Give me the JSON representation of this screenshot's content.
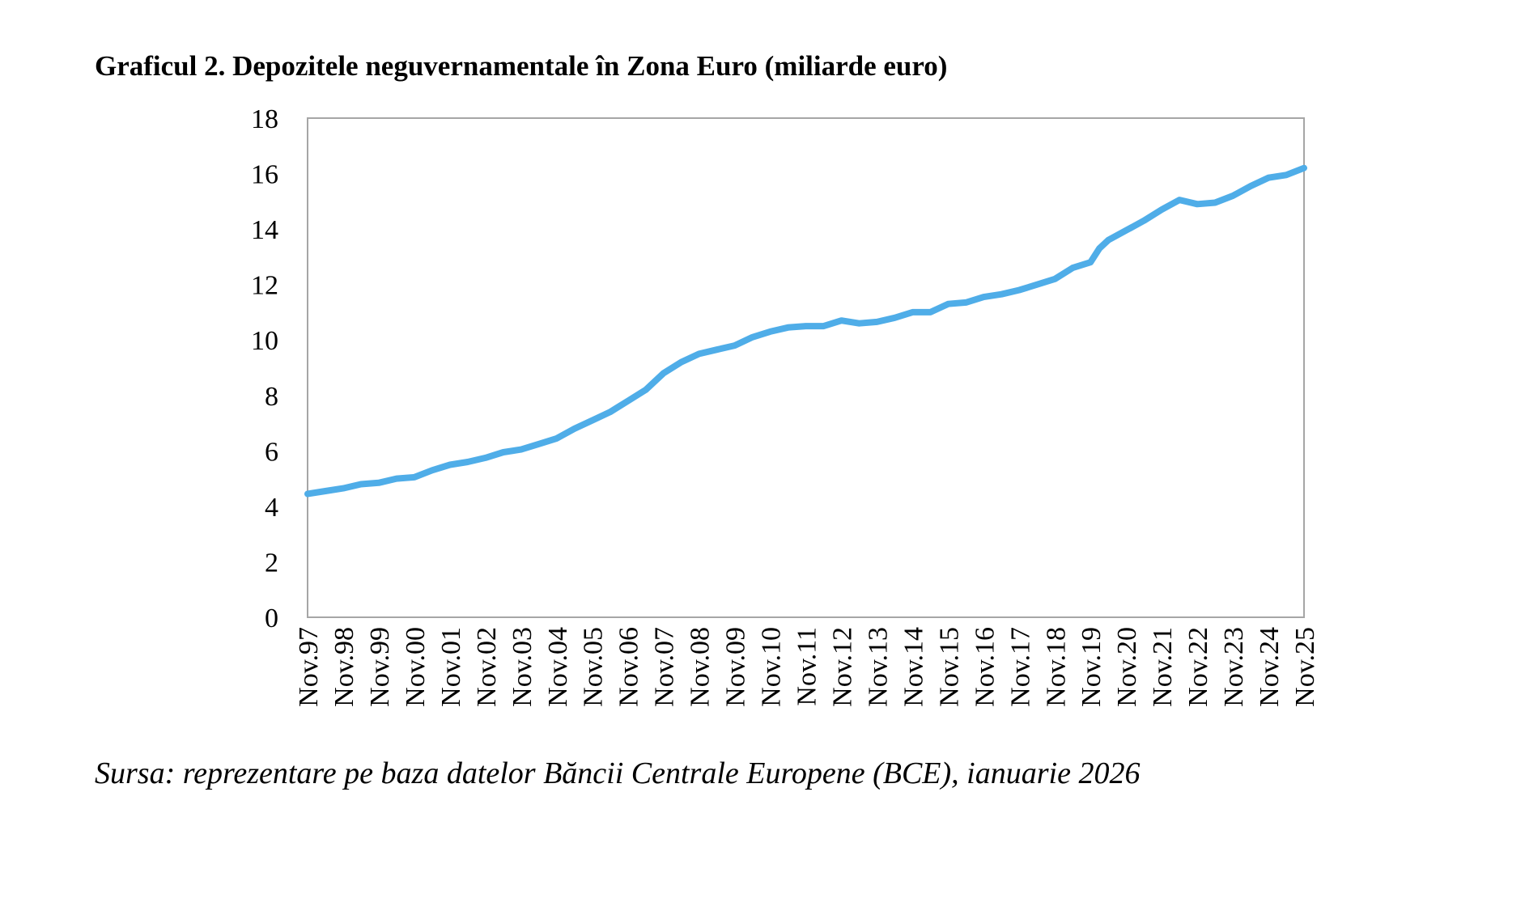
{
  "chart_data": {
    "type": "line",
    "title": "Graficul 2. Depozitele neguvernamentale în Zona Euro (miliarde euro)",
    "source": "Sursa: reprezentare pe baza datelor Băncii Centrale Europene (BCE), ianuarie 2026",
    "xlabel": "",
    "ylabel": "",
    "ylim": [
      0,
      18
    ],
    "yticks": [
      "0",
      "2",
      "4",
      "6",
      "8",
      "10",
      "12",
      "14",
      "16",
      "18"
    ],
    "xticks": [
      "Nov.97",
      "Nov.98",
      "Nov.99",
      "Nov.00",
      "Nov.01",
      "Nov.02",
      "Nov.03",
      "Nov.04",
      "Nov.05",
      "Nov.06",
      "Nov.07",
      "Nov.08",
      "Nov.09",
      "Nov.10",
      "Nov.11",
      "Nov.12",
      "Nov.13",
      "Nov.14",
      "Nov.15",
      "Nov.16",
      "Nov.17",
      "Nov.18",
      "Nov.19",
      "Nov.20",
      "Nov.21",
      "Nov.22",
      "Nov.23",
      "Nov.24",
      "Nov.25"
    ],
    "grid": false,
    "line_color": "#4FADE8",
    "series": [
      {
        "x": [
          "1997-11",
          "1998-05",
          "1998-11",
          "1999-05",
          "1999-11",
          "2000-05",
          "2000-11",
          "2001-05",
          "2001-11",
          "2002-05",
          "2002-11",
          "2003-05",
          "2003-11",
          "2004-05",
          "2004-11",
          "2005-05",
          "2005-11",
          "2006-05",
          "2006-11",
          "2007-05",
          "2007-11",
          "2008-05",
          "2008-11",
          "2009-05",
          "2009-11",
          "2010-05",
          "2010-11",
          "2011-05",
          "2011-11",
          "2012-05",
          "2012-11",
          "2013-05",
          "2013-11",
          "2014-05",
          "2014-11",
          "2015-05",
          "2015-11",
          "2016-05",
          "2016-11",
          "2017-05",
          "2017-11",
          "2018-05",
          "2018-11",
          "2019-05",
          "2019-11",
          "2020-02",
          "2020-05",
          "2020-11",
          "2021-05",
          "2021-11",
          "2022-05",
          "2022-11",
          "2023-05",
          "2023-11",
          "2024-05",
          "2024-11",
          "2025-05",
          "2025-11"
        ],
        "values": [
          4.45,
          4.55,
          4.65,
          4.8,
          4.85,
          5.0,
          5.05,
          5.3,
          5.5,
          5.6,
          5.75,
          5.95,
          6.05,
          6.25,
          6.45,
          6.8,
          7.1,
          7.4,
          7.8,
          8.2,
          8.8,
          9.2,
          9.5,
          9.65,
          9.8,
          10.1,
          10.3,
          10.45,
          10.5,
          10.5,
          10.7,
          10.6,
          10.65,
          10.8,
          11.0,
          11.0,
          11.3,
          11.35,
          11.55,
          11.65,
          11.8,
          12.0,
          12.2,
          12.6,
          12.8,
          13.3,
          13.6,
          13.95,
          14.3,
          14.7,
          15.05,
          14.9,
          14.95,
          15.2,
          15.55,
          15.85,
          15.95,
          16.2
        ]
      }
    ]
  }
}
